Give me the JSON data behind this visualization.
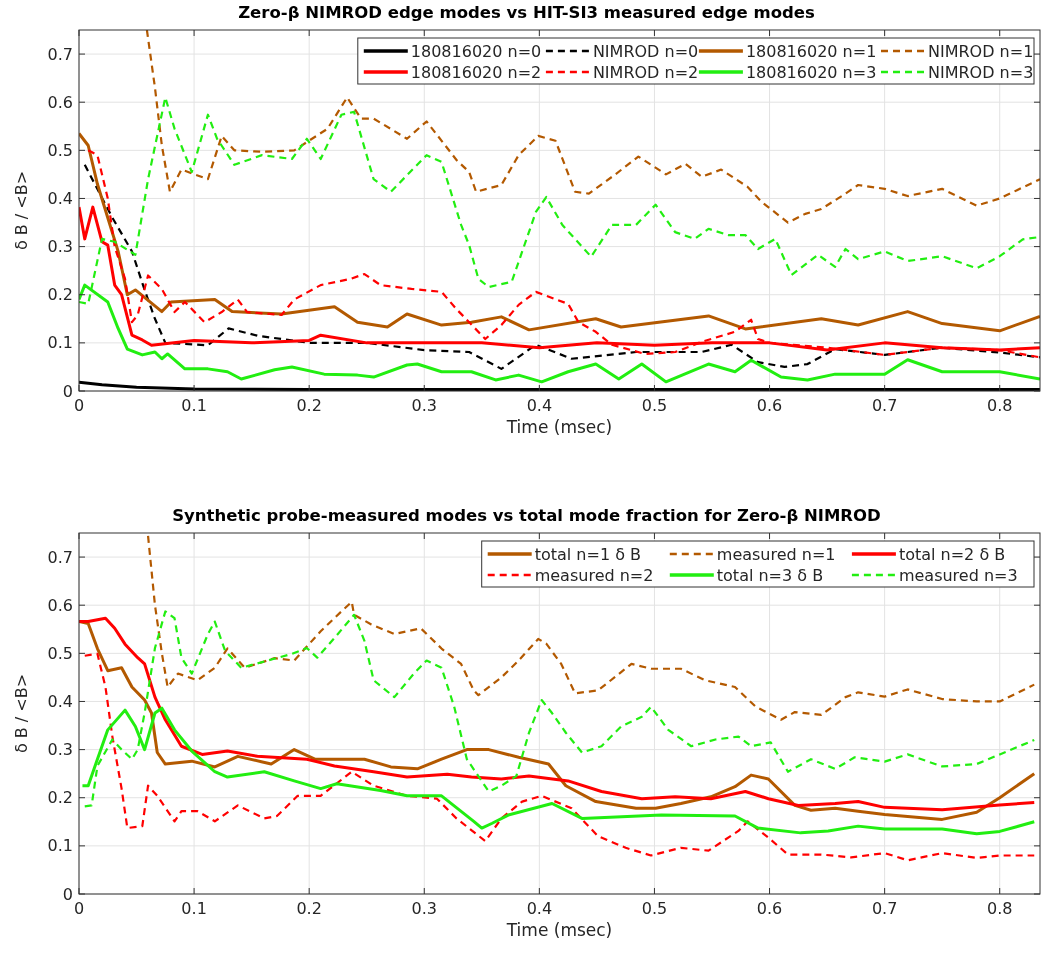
{
  "chart_data": [
    {
      "type": "line",
      "title": "Zero-β NIMROD edge modes vs HIT-SI3 measured edge modes",
      "xlabel": "Time (msec)",
      "ylabel": "δ B / <B>",
      "xlim": [
        0,
        0.835
      ],
      "ylim": [
        0,
        0.75
      ],
      "xticks": [
        0,
        0.1,
        0.2,
        0.3,
        0.4,
        0.5,
        0.6,
        0.7,
        0.8
      ],
      "yticks": [
        0,
        0.1,
        0.2,
        0.3,
        0.4,
        0.5,
        0.6,
        0.7
      ],
      "grid": true,
      "legend": "top right",
      "series": [
        {
          "name": "180816020 n=0",
          "color": "#000000",
          "line_style": "solid",
          "x": [
            0,
            0.02,
            0.05,
            0.1,
            0.2,
            0.4,
            0.6,
            0.8,
            0.835
          ],
          "values": [
            0.018,
            0.013,
            0.008,
            0.004,
            0.003,
            0.003,
            0.003,
            0.003,
            0.003
          ]
        },
        {
          "name": "NIMROD n=0",
          "color": "#000000",
          "line_style": "dashed",
          "x": [
            0.005,
            0.029,
            0.046,
            0.057,
            0.066,
            0.075,
            0.112,
            0.13,
            0.155,
            0.2,
            0.25,
            0.3,
            0.339,
            0.367,
            0.397,
            0.428,
            0.484,
            0.541,
            0.567,
            0.59,
            0.613,
            0.633,
            0.657,
            0.7,
            0.75,
            0.8,
            0.835
          ],
          "values": [
            0.47,
            0.36,
            0.29,
            0.21,
            0.15,
            0.1,
            0.095,
            0.13,
            0.115,
            0.1,
            0.1,
            0.085,
            0.081,
            0.046,
            0.096,
            0.067,
            0.081,
            0.081,
            0.096,
            0.06,
            0.05,
            0.056,
            0.087,
            0.075,
            0.09,
            0.08,
            0.07
          ]
        },
        {
          "name": "180816020 n=1",
          "color": "#b35900",
          "line_style": "solid",
          "x": [
            0,
            0.008,
            0.016,
            0.025,
            0.034,
            0.042,
            0.049,
            0.072,
            0.08,
            0.118,
            0.133,
            0.176,
            0.222,
            0.242,
            0.268,
            0.285,
            0.315,
            0.341,
            0.367,
            0.391,
            0.449,
            0.471,
            0.547,
            0.579,
            0.645,
            0.677,
            0.72,
            0.75,
            0.8,
            0.835
          ],
          "values": [
            0.535,
            0.51,
            0.43,
            0.36,
            0.29,
            0.2,
            0.21,
            0.165,
            0.185,
            0.19,
            0.165,
            0.16,
            0.175,
            0.143,
            0.133,
            0.16,
            0.137,
            0.143,
            0.154,
            0.127,
            0.15,
            0.133,
            0.156,
            0.129,
            0.15,
            0.137,
            0.165,
            0.14,
            0.125,
            0.155
          ]
        },
        {
          "name": "NIMROD n=1",
          "color": "#b35900",
          "line_style": "dashed",
          "x": [
            0.059,
            0.066,
            0.072,
            0.079,
            0.089,
            0.112,
            0.124,
            0.135,
            0.159,
            0.187,
            0.216,
            0.233,
            0.245,
            0.256,
            0.285,
            0.302,
            0.328,
            0.339,
            0.345,
            0.367,
            0.382,
            0.399,
            0.414,
            0.431,
            0.443,
            0.466,
            0.486,
            0.51,
            0.527,
            0.541,
            0.558,
            0.581,
            0.593,
            0.616,
            0.631,
            0.645,
            0.666,
            0.677,
            0.7,
            0.72,
            0.75,
            0.78,
            0.8,
            0.835
          ],
          "values": [
            0.75,
            0.63,
            0.51,
            0.414,
            0.46,
            0.44,
            0.53,
            0.5,
            0.497,
            0.5,
            0.545,
            0.61,
            0.566,
            0.566,
            0.524,
            0.56,
            0.48,
            0.455,
            0.414,
            0.428,
            0.49,
            0.53,
            0.52,
            0.414,
            0.41,
            0.45,
            0.487,
            0.45,
            0.472,
            0.445,
            0.46,
            0.424,
            0.393,
            0.35,
            0.368,
            0.378,
            0.41,
            0.428,
            0.42,
            0.405,
            0.42,
            0.385,
            0.4,
            0.44
          ]
        },
        {
          "name": "180816020 n=2",
          "color": "#ff0000",
          "line_style": "solid",
          "x": [
            0,
            0.005,
            0.012,
            0.02,
            0.025,
            0.031,
            0.037,
            0.046,
            0.055,
            0.063,
            0.1,
            0.15,
            0.2,
            0.21,
            0.25,
            0.3,
            0.35,
            0.4,
            0.45,
            0.5,
            0.55,
            0.6,
            0.65,
            0.7,
            0.75,
            0.8,
            0.835
          ],
          "values": [
            0.382,
            0.316,
            0.382,
            0.31,
            0.303,
            0.22,
            0.2,
            0.116,
            0.106,
            0.095,
            0.105,
            0.1,
            0.105,
            0.116,
            0.1,
            0.1,
            0.1,
            0.09,
            0.1,
            0.095,
            0.1,
            0.1,
            0.085,
            0.1,
            0.09,
            0.085,
            0.09
          ]
        },
        {
          "name": "NIMROD n=2",
          "color": "#ff0000",
          "line_style": "dashed",
          "x": [
            0.008,
            0.016,
            0.025,
            0.031,
            0.04,
            0.046,
            0.051,
            0.06,
            0.072,
            0.083,
            0.092,
            0.109,
            0.124,
            0.138,
            0.146,
            0.176,
            0.187,
            0.21,
            0.236,
            0.248,
            0.262,
            0.289,
            0.315,
            0.328,
            0.339,
            0.353,
            0.367,
            0.382,
            0.397,
            0.425,
            0.434,
            0.449,
            0.463,
            0.492,
            0.518,
            0.541,
            0.57,
            0.584,
            0.59,
            0.6,
            0.65,
            0.7,
            0.75,
            0.8,
            0.835
          ],
          "values": [
            0.5,
            0.49,
            0.4,
            0.3,
            0.233,
            0.143,
            0.158,
            0.24,
            0.212,
            0.164,
            0.185,
            0.143,
            0.164,
            0.19,
            0.164,
            0.158,
            0.19,
            0.22,
            0.233,
            0.243,
            0.22,
            0.212,
            0.206,
            0.17,
            0.143,
            0.108,
            0.137,
            0.179,
            0.206,
            0.181,
            0.143,
            0.123,
            0.096,
            0.077,
            0.081,
            0.102,
            0.123,
            0.148,
            0.108,
            0.1,
            0.09,
            0.075,
            0.09,
            0.085,
            0.07
          ]
        },
        {
          "name": "180816020 n=3",
          "color": "#22ee11",
          "line_style": "solid",
          "x": [
            0,
            0.005,
            0.025,
            0.034,
            0.042,
            0.055,
            0.066,
            0.072,
            0.077,
            0.092,
            0.112,
            0.129,
            0.141,
            0.17,
            0.185,
            0.213,
            0.242,
            0.256,
            0.285,
            0.294,
            0.315,
            0.341,
            0.362,
            0.382,
            0.402,
            0.425,
            0.449,
            0.469,
            0.489,
            0.51,
            0.547,
            0.57,
            0.584,
            0.61,
            0.633,
            0.657,
            0.7,
            0.72,
            0.75,
            0.8,
            0.835
          ],
          "values": [
            0.19,
            0.22,
            0.185,
            0.13,
            0.087,
            0.075,
            0.081,
            0.067,
            0.077,
            0.046,
            0.046,
            0.04,
            0.025,
            0.044,
            0.05,
            0.035,
            0.033,
            0.029,
            0.054,
            0.056,
            0.04,
            0.04,
            0.023,
            0.033,
            0.019,
            0.04,
            0.056,
            0.025,
            0.056,
            0.019,
            0.056,
            0.04,
            0.064,
            0.029,
            0.023,
            0.035,
            0.035,
            0.065,
            0.04,
            0.04,
            0.025
          ]
        },
        {
          "name": "NIMROD n=3",
          "color": "#22ee11",
          "line_style": "dashed",
          "x": [
            0,
            0.008,
            0.02,
            0.031,
            0.049,
            0.06,
            0.075,
            0.083,
            0.098,
            0.112,
            0.12,
            0.135,
            0.159,
            0.185,
            0.198,
            0.21,
            0.228,
            0.239,
            0.256,
            0.271,
            0.302,
            0.315,
            0.332,
            0.339,
            0.347,
            0.356,
            0.376,
            0.397,
            0.406,
            0.42,
            0.445,
            0.463,
            0.484,
            0.501,
            0.518,
            0.535,
            0.547,
            0.564,
            0.579,
            0.59,
            0.605,
            0.619,
            0.642,
            0.657,
            0.666,
            0.677,
            0.7,
            0.72,
            0.75,
            0.78,
            0.8,
            0.82,
            0.835
          ],
          "values": [
            0.185,
            0.181,
            0.316,
            0.31,
            0.283,
            0.44,
            0.61,
            0.545,
            0.455,
            0.574,
            0.524,
            0.47,
            0.49,
            0.482,
            0.524,
            0.482,
            0.574,
            0.58,
            0.44,
            0.414,
            0.49,
            0.476,
            0.345,
            0.303,
            0.233,
            0.216,
            0.227,
            0.372,
            0.403,
            0.345,
            0.279,
            0.345,
            0.345,
            0.387,
            0.33,
            0.316,
            0.337,
            0.324,
            0.324,
            0.295,
            0.316,
            0.241,
            0.283,
            0.258,
            0.295,
            0.274,
            0.29,
            0.27,
            0.28,
            0.255,
            0.28,
            0.315,
            0.32
          ]
        }
      ]
    },
    {
      "type": "line",
      "title": "Synthetic probe-measured modes vs total mode fraction for Zero-β NIMROD",
      "xlabel": "Time (msec)",
      "ylabel": "δ B / <B>",
      "xlim": [
        0,
        0.835
      ],
      "ylim": [
        0,
        0.75
      ],
      "xticks": [
        0,
        0.1,
        0.2,
        0.3,
        0.4,
        0.5,
        0.6,
        0.7,
        0.8
      ],
      "yticks": [
        0,
        0.1,
        0.2,
        0.3,
        0.4,
        0.5,
        0.6,
        0.7
      ],
      "grid": true,
      "legend": "top right",
      "series": [
        {
          "name": "total n=1 δ B",
          "color": "#b35900",
          "line_style": "solid",
          "x": [
            0,
            0.008,
            0.016,
            0.025,
            0.037,
            0.046,
            0.057,
            0.063,
            0.068,
            0.075,
            0.098,
            0.118,
            0.138,
            0.167,
            0.187,
            0.205,
            0.248,
            0.271,
            0.294,
            0.315,
            0.337,
            0.356,
            0.382,
            0.408,
            0.423,
            0.449,
            0.484,
            0.501,
            0.523,
            0.549,
            0.57,
            0.584,
            0.599,
            0.622,
            0.636,
            0.657,
            0.677,
            0.7,
            0.75,
            0.78,
            0.8,
            0.83
          ],
          "values": [
            0.566,
            0.562,
            0.51,
            0.464,
            0.47,
            0.43,
            0.403,
            0.376,
            0.294,
            0.27,
            0.276,
            0.264,
            0.286,
            0.27,
            0.3,
            0.28,
            0.28,
            0.264,
            0.26,
            0.28,
            0.3,
            0.3,
            0.284,
            0.27,
            0.225,
            0.192,
            0.178,
            0.178,
            0.188,
            0.202,
            0.223,
            0.247,
            0.239,
            0.184,
            0.174,
            0.178,
            0.172,
            0.165,
            0.155,
            0.17,
            0.2,
            0.25
          ]
        },
        {
          "name": "measured n=1",
          "color": "#b35900",
          "line_style": "dashed",
          "x": [
            0.06,
            0.066,
            0.072,
            0.077,
            0.086,
            0.103,
            0.118,
            0.129,
            0.144,
            0.17,
            0.187,
            0.21,
            0.228,
            0.237,
            0.239,
            0.254,
            0.274,
            0.297,
            0.315,
            0.332,
            0.343,
            0.347,
            0.367,
            0.382,
            0.399,
            0.406,
            0.419,
            0.431,
            0.451,
            0.48,
            0.497,
            0.523,
            0.544,
            0.57,
            0.588,
            0.61,
            0.622,
            0.645,
            0.666,
            0.677,
            0.7,
            0.72,
            0.75,
            0.78,
            0.8,
            0.83
          ],
          "values": [
            0.744,
            0.6,
            0.5,
            0.43,
            0.458,
            0.444,
            0.47,
            0.51,
            0.47,
            0.49,
            0.485,
            0.546,
            0.587,
            0.607,
            0.58,
            0.56,
            0.54,
            0.552,
            0.51,
            0.478,
            0.423,
            0.413,
            0.45,
            0.485,
            0.53,
            0.52,
            0.478,
            0.417,
            0.423,
            0.478,
            0.468,
            0.468,
            0.444,
            0.43,
            0.389,
            0.362,
            0.378,
            0.372,
            0.409,
            0.419,
            0.41,
            0.425,
            0.405,
            0.4,
            0.4,
            0.435
          ]
        },
        {
          "name": "total n=2 δ B",
          "color": "#ff0000",
          "line_style": "solid",
          "x": [
            0,
            0.008,
            0.023,
            0.031,
            0.04,
            0.051,
            0.057,
            0.066,
            0.075,
            0.089,
            0.107,
            0.129,
            0.155,
            0.198,
            0.222,
            0.256,
            0.285,
            0.32,
            0.341,
            0.367,
            0.391,
            0.425,
            0.454,
            0.489,
            0.518,
            0.549,
            0.579,
            0.599,
            0.625,
            0.657,
            0.677,
            0.7,
            0.75,
            0.8,
            0.83
          ],
          "values": [
            0.566,
            0.566,
            0.573,
            0.552,
            0.519,
            0.491,
            0.478,
            0.409,
            0.362,
            0.307,
            0.29,
            0.297,
            0.286,
            0.28,
            0.266,
            0.254,
            0.243,
            0.249,
            0.243,
            0.239,
            0.245,
            0.235,
            0.213,
            0.198,
            0.202,
            0.198,
            0.213,
            0.198,
            0.184,
            0.188,
            0.192,
            0.18,
            0.175,
            0.185,
            0.19
          ]
        },
        {
          "name": "measured n=2",
          "color": "#ff0000",
          "line_style": "dashed",
          "x": [
            0.005,
            0.016,
            0.023,
            0.029,
            0.037,
            0.042,
            0.055,
            0.06,
            0.068,
            0.083,
            0.089,
            0.103,
            0.118,
            0.138,
            0.161,
            0.172,
            0.19,
            0.21,
            0.237,
            0.256,
            0.285,
            0.311,
            0.328,
            0.353,
            0.367,
            0.385,
            0.402,
            0.428,
            0.451,
            0.475,
            0.497,
            0.523,
            0.547,
            0.573,
            0.581,
            0.599,
            0.616,
            0.645,
            0.671,
            0.7,
            0.72,
            0.75,
            0.78,
            0.8,
            0.83
          ],
          "values": [
            0.495,
            0.499,
            0.43,
            0.327,
            0.219,
            0.137,
            0.141,
            0.225,
            0.204,
            0.151,
            0.172,
            0.172,
            0.151,
            0.184,
            0.157,
            0.162,
            0.204,
            0.204,
            0.254,
            0.225,
            0.204,
            0.198,
            0.157,
            0.11,
            0.157,
            0.192,
            0.204,
            0.178,
            0.12,
            0.096,
            0.08,
            0.096,
            0.09,
            0.131,
            0.151,
            0.117,
            0.082,
            0.082,
            0.076,
            0.085,
            0.07,
            0.085,
            0.075,
            0.08,
            0.08
          ]
        },
        {
          "name": "total n=3 δ B",
          "color": "#22ee11",
          "line_style": "solid",
          "x": [
            0.003,
            0.008,
            0.016,
            0.025,
            0.04,
            0.049,
            0.057,
            0.066,
            0.072,
            0.083,
            0.098,
            0.118,
            0.129,
            0.161,
            0.187,
            0.21,
            0.224,
            0.262,
            0.285,
            0.315,
            0.343,
            0.35,
            0.359,
            0.373,
            0.411,
            0.437,
            0.506,
            0.57,
            0.59,
            0.627,
            0.651,
            0.677,
            0.7,
            0.75,
            0.78,
            0.8,
            0.83
          ],
          "values": [
            0.225,
            0.225,
            0.28,
            0.341,
            0.382,
            0.348,
            0.3,
            0.376,
            0.386,
            0.341,
            0.297,
            0.254,
            0.243,
            0.254,
            0.235,
            0.219,
            0.229,
            0.215,
            0.204,
            0.204,
            0.151,
            0.137,
            0.147,
            0.164,
            0.188,
            0.157,
            0.164,
            0.162,
            0.137,
            0.127,
            0.131,
            0.141,
            0.135,
            0.135,
            0.125,
            0.13,
            0.15
          ]
        },
        {
          "name": "measured n=3",
          "color": "#22ee11",
          "line_style": "dashed",
          "x": [
            0.005,
            0.011,
            0.016,
            0.029,
            0.037,
            0.046,
            0.051,
            0.057,
            0.066,
            0.075,
            0.083,
            0.089,
            0.098,
            0.112,
            0.118,
            0.127,
            0.141,
            0.164,
            0.185,
            0.198,
            0.207,
            0.222,
            0.239,
            0.248,
            0.256,
            0.274,
            0.291,
            0.302,
            0.315,
            0.326,
            0.337,
            0.341,
            0.356,
            0.367,
            0.38,
            0.391,
            0.402,
            0.411,
            0.423,
            0.437,
            0.454,
            0.471,
            0.489,
            0.497,
            0.512,
            0.532,
            0.553,
            0.573,
            0.584,
            0.601,
            0.616,
            0.636,
            0.657,
            0.674,
            0.7,
            0.72,
            0.75,
            0.78,
            0.8,
            0.83
          ],
          "values": [
            0.182,
            0.184,
            0.266,
            0.321,
            0.3,
            0.28,
            0.3,
            0.376,
            0.511,
            0.587,
            0.573,
            0.491,
            0.458,
            0.54,
            0.566,
            0.505,
            0.47,
            0.485,
            0.499,
            0.511,
            0.491,
            0.532,
            0.58,
            0.526,
            0.444,
            0.409,
            0.458,
            0.485,
            0.47,
            0.389,
            0.28,
            0.266,
            0.213,
            0.225,
            0.245,
            0.335,
            0.403,
            0.376,
            0.335,
            0.294,
            0.307,
            0.348,
            0.368,
            0.389,
            0.341,
            0.307,
            0.321,
            0.327,
            0.307,
            0.315,
            0.254,
            0.28,
            0.26,
            0.284,
            0.275,
            0.29,
            0.265,
            0.27,
            0.29,
            0.32
          ]
        }
      ]
    }
  ]
}
